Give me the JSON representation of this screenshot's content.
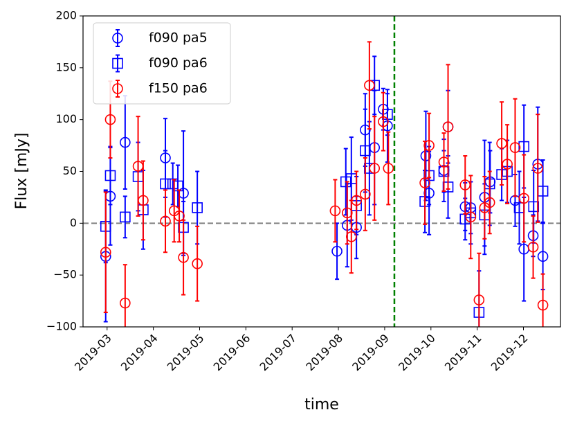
{
  "chart_data": {
    "type": "errorbar",
    "x_label": "time",
    "y_label": "Flux [mJy]",
    "xlim": [
      2.48,
      12.8
    ],
    "xticks": [
      {
        "value": 3,
        "label": "2019-03"
      },
      {
        "value": 4,
        "label": "2019-04"
      },
      {
        "value": 5,
        "label": "2019-05"
      },
      {
        "value": 6,
        "label": "2019-06"
      },
      {
        "value": 7,
        "label": "2019-07"
      },
      {
        "value": 8,
        "label": "2019-08"
      },
      {
        "value": 9,
        "label": "2019-09"
      },
      {
        "value": 10,
        "label": "2019-10"
      },
      {
        "value": 11,
        "label": "2019-11"
      },
      {
        "value": 12,
        "label": "2019-12"
      }
    ],
    "ylim": [
      -100,
      200
    ],
    "yticks": [
      {
        "value": -100,
        "label": "−100"
      },
      {
        "value": -50,
        "label": "−50"
      },
      0,
      50,
      100,
      150,
      200
    ],
    "legend": "upper left",
    "reference_lines": [
      {
        "axis": "y",
        "value": 0,
        "color": "#808080"
      },
      {
        "axis": "x",
        "value": 9.21,
        "color": "#008000"
      }
    ],
    "series": [
      {
        "name": "f090 pa5",
        "color": "#0000ff",
        "marker": "circle",
        "x": [
          2.97,
          3.07,
          3.39,
          4.26,
          4.65,
          7.97,
          8.19,
          8.39,
          8.58,
          8.78,
          8.97,
          9.06,
          9.89,
          9.96,
          10.28,
          10.37,
          10.74,
          10.86,
          11.16,
          11.28,
          11.82,
          12.01,
          12.21,
          12.31,
          12.42
        ],
        "values": [
          -32,
          26,
          78,
          63,
          29,
          -27,
          -2,
          -4,
          90,
          73,
          110,
          94,
          65,
          29,
          51,
          93,
          16,
          15,
          25,
          40,
          22,
          -25,
          -12,
          57,
          -32
        ],
        "errors": [
          63,
          47,
          45,
          38,
          60,
          27,
          40,
          30,
          35,
          55,
          20,
          35,
          43,
          40,
          30,
          35,
          23,
          25,
          55,
          30,
          25,
          50,
          20,
          55,
          32
        ]
      },
      {
        "name": "f090 pa6",
        "color": "#0000ff",
        "marker": "square",
        "x": [
          2.97,
          3.07,
          3.39,
          3.67,
          3.78,
          4.26,
          4.42,
          4.53,
          4.65,
          4.95,
          8.16,
          8.28,
          8.39,
          8.58,
          8.67,
          8.78,
          9.06,
          9.87,
          9.96,
          10.28,
          10.37,
          10.74,
          10.86,
          11.04,
          11.16,
          11.27,
          11.53,
          11.65,
          11.91,
          12.01,
          12.22,
          12.42
        ],
        "values": [
          -3,
          46,
          6,
          45,
          13,
          38,
          38,
          36,
          -4,
          15,
          40,
          43,
          17,
          70,
          53,
          133,
          105,
          21,
          46,
          50,
          35,
          4,
          10,
          -86,
          8,
          38,
          47,
          50,
          15,
          74,
          16,
          31
        ],
        "errors": [
          35,
          28,
          20,
          33,
          38,
          32,
          20,
          20,
          25,
          35,
          32,
          40,
          28,
          40,
          45,
          28,
          20,
          30,
          28,
          20,
          30,
          20,
          30,
          40,
          30,
          40,
          25,
          30,
          35,
          40,
          35,
          30
        ]
      },
      {
        "name": "f150 pa6",
        "color": "#ff0000",
        "marker": "circle",
        "x": [
          2.97,
          3.07,
          3.39,
          3.67,
          3.78,
          4.26,
          4.45,
          4.56,
          4.65,
          4.95,
          7.93,
          8.19,
          8.28,
          8.39,
          8.58,
          8.67,
          8.78,
          8.97,
          9.08,
          9.87,
          9.96,
          10.28,
          10.37,
          10.74,
          10.86,
          11.04,
          11.16,
          11.27,
          11.53,
          11.65,
          11.82,
          12.01,
          12.21,
          12.31,
          12.42
        ],
        "values": [
          -28,
          100,
          -77,
          55,
          22,
          2,
          12,
          7,
          -33,
          -39,
          12,
          10,
          -13,
          22,
          28,
          133,
          53,
          98,
          53,
          39,
          75,
          59,
          93,
          37,
          6,
          -74,
          15,
          20,
          77,
          57,
          73,
          24,
          -23,
          53,
          -79
        ],
        "errors": [
          58,
          37,
          37,
          48,
          38,
          30,
          30,
          25,
          36,
          36,
          30,
          30,
          35,
          28,
          35,
          42,
          50,
          28,
          35,
          40,
          31,
          28,
          60,
          28,
          40,
          45,
          30,
          30,
          40,
          38,
          47,
          42,
          30,
          52,
          30
        ]
      }
    ]
  }
}
